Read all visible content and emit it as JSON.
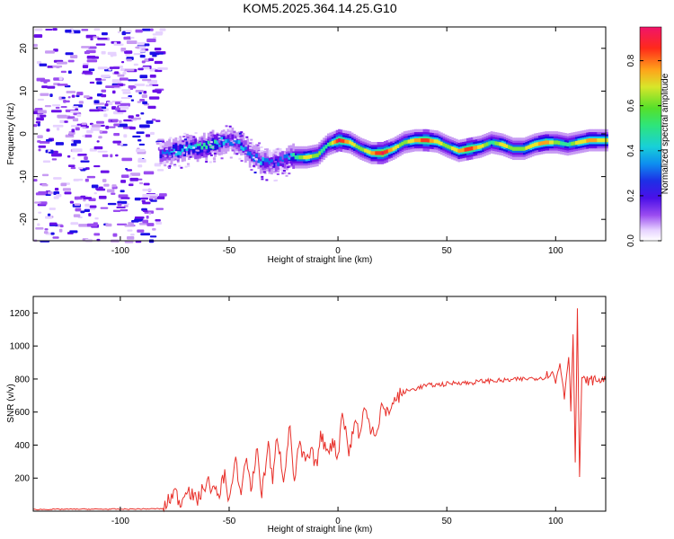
{
  "title": "KOM5.2025.364.14.25.G10",
  "colors": {
    "snr_line": "#e8302a",
    "spectro_levels": [
      "#e6d2ff",
      "#c89cf3",
      "#9a4cf0",
      "#6a10e8",
      "#1d0fe6",
      "#0d6ef0",
      "#18c8e8",
      "#2ee59a",
      "#7fe63a",
      "#e8e62a",
      "#ffa31a",
      "#ff3a1a",
      "#e8165a"
    ]
  },
  "chart_data": [
    {
      "type": "heatmap",
      "name": "spectrogram",
      "xlabel": "Height of straight line (km)",
      "ylabel": "Frequency (Hz)",
      "xlim": [
        -140,
        123
      ],
      "ylim": [
        -25,
        25
      ],
      "xticks": [
        -100,
        -50,
        0,
        50,
        100
      ],
      "yticks": [
        -20,
        -10,
        0,
        10,
        20
      ],
      "xtick_labels": [
        "-100",
        "-50",
        "0",
        "50",
        "100"
      ],
      "ytick_labels": [
        "-20",
        "-10",
        "0",
        "10",
        "20"
      ],
      "colorbar": {
        "label": "Normalized spectral amplitude",
        "range": [
          0,
          0.95
        ],
        "ticks": [
          0.0,
          0.2,
          0.4,
          0.6,
          0.8
        ],
        "tick_labels": [
          "0.0",
          "0.2",
          "0.4",
          "0.6",
          "0.8"
        ]
      },
      "ridge_description": "noise speckle for x < -82 km; signal band centered near -3 Hz from x=-82, dipping to about -7 Hz at x=-30, oscillating between -4 and -1 Hz from x=0 to 123",
      "ridge": {
        "x": [
          -82,
          -75,
          -70,
          -62,
          -55,
          -50,
          -45,
          -40,
          -35,
          -30,
          -25,
          -20,
          -15,
          -10,
          -5,
          0,
          5,
          10,
          15,
          20,
          25,
          30,
          35,
          40,
          45,
          50,
          55,
          60,
          65,
          70,
          75,
          80,
          85,
          90,
          95,
          100,
          105,
          110,
          115,
          123
        ],
        "freq": [
          -4.5,
          -4.0,
          -3.5,
          -3.0,
          -2.0,
          -1.5,
          -2.5,
          -5.0,
          -6.5,
          -7.0,
          -6.0,
          -5.5,
          -5.5,
          -5.0,
          -2.5,
          -1.5,
          -2.0,
          -3.5,
          -4.5,
          -4.5,
          -3.5,
          -2.0,
          -1.5,
          -1.5,
          -1.8,
          -3.0,
          -4.0,
          -3.5,
          -3.0,
          -2.0,
          -2.5,
          -3.5,
          -3.5,
          -2.5,
          -2.0,
          -2.0,
          -2.5,
          -2.0,
          -1.5,
          -1.5
        ],
        "amp": [
          0.35,
          0.5,
          0.45,
          0.55,
          0.5,
          0.4,
          0.45,
          0.4,
          0.45,
          0.35,
          0.4,
          0.55,
          0.7,
          0.6,
          0.55,
          0.88,
          0.7,
          0.6,
          0.75,
          0.9,
          0.7,
          0.6,
          0.75,
          0.85,
          0.7,
          0.6,
          0.75,
          0.85,
          0.7,
          0.55,
          0.7,
          0.6,
          0.65,
          0.7,
          0.8,
          0.6,
          0.55,
          0.7,
          0.75,
          0.7
        ]
      }
    },
    {
      "type": "line",
      "name": "snr",
      "xlabel": "Height of straight line (km)",
      "ylabel": "SNR (v/v)",
      "xlim": [
        -140,
        123
      ],
      "ylim": [
        0,
        1300
      ],
      "xticks": [
        -100,
        -50,
        0,
        50,
        100
      ],
      "yticks": [
        200,
        400,
        600,
        800,
        1000,
        1200
      ],
      "xtick_labels": [
        "-100",
        "-50",
        "0",
        "50",
        "100"
      ],
      "ytick_labels": [
        "200",
        "400",
        "600",
        "800",
        "1000",
        "1200"
      ],
      "series": [
        {
          "name": "SNR",
          "x": [
            -140,
            -120,
            -100,
            -85,
            -80,
            -78,
            -75,
            -72,
            -70,
            -65,
            -60,
            -55,
            -52,
            -50,
            -47,
            -45,
            -42,
            -40,
            -37,
            -35,
            -32,
            -30,
            -28,
            -25,
            -22,
            -20,
            -18,
            -15,
            -12,
            -10,
            -8,
            -5,
            -2,
            0,
            2,
            5,
            8,
            10,
            12,
            15,
            18,
            20,
            22,
            25,
            28,
            30,
            35,
            40,
            45,
            50,
            55,
            60,
            65,
            70,
            75,
            80,
            85,
            90,
            95,
            98,
            100,
            102,
            104,
            105,
            106,
            107,
            108,
            109,
            110,
            111,
            112,
            115,
            120,
            123
          ],
          "values": [
            10,
            12,
            12,
            14,
            15,
            60,
            120,
            40,
            150,
            60,
            180,
            90,
            230,
            60,
            300,
            100,
            330,
            130,
            380,
            90,
            420,
            160,
            470,
            200,
            520,
            160,
            400,
            300,
            350,
            270,
            450,
            380,
            410,
            330,
            620,
            350,
            560,
            450,
            620,
            510,
            480,
            640,
            580,
            650,
            700,
            720,
            740,
            760,
            765,
            770,
            780,
            775,
            785,
            790,
            790,
            795,
            800,
            805,
            810,
            850,
            780,
            900,
            700,
            820,
            960,
            620,
            1100,
            280,
            1200,
            210,
            790,
            790,
            795,
            790
          ]
        }
      ]
    }
  ]
}
